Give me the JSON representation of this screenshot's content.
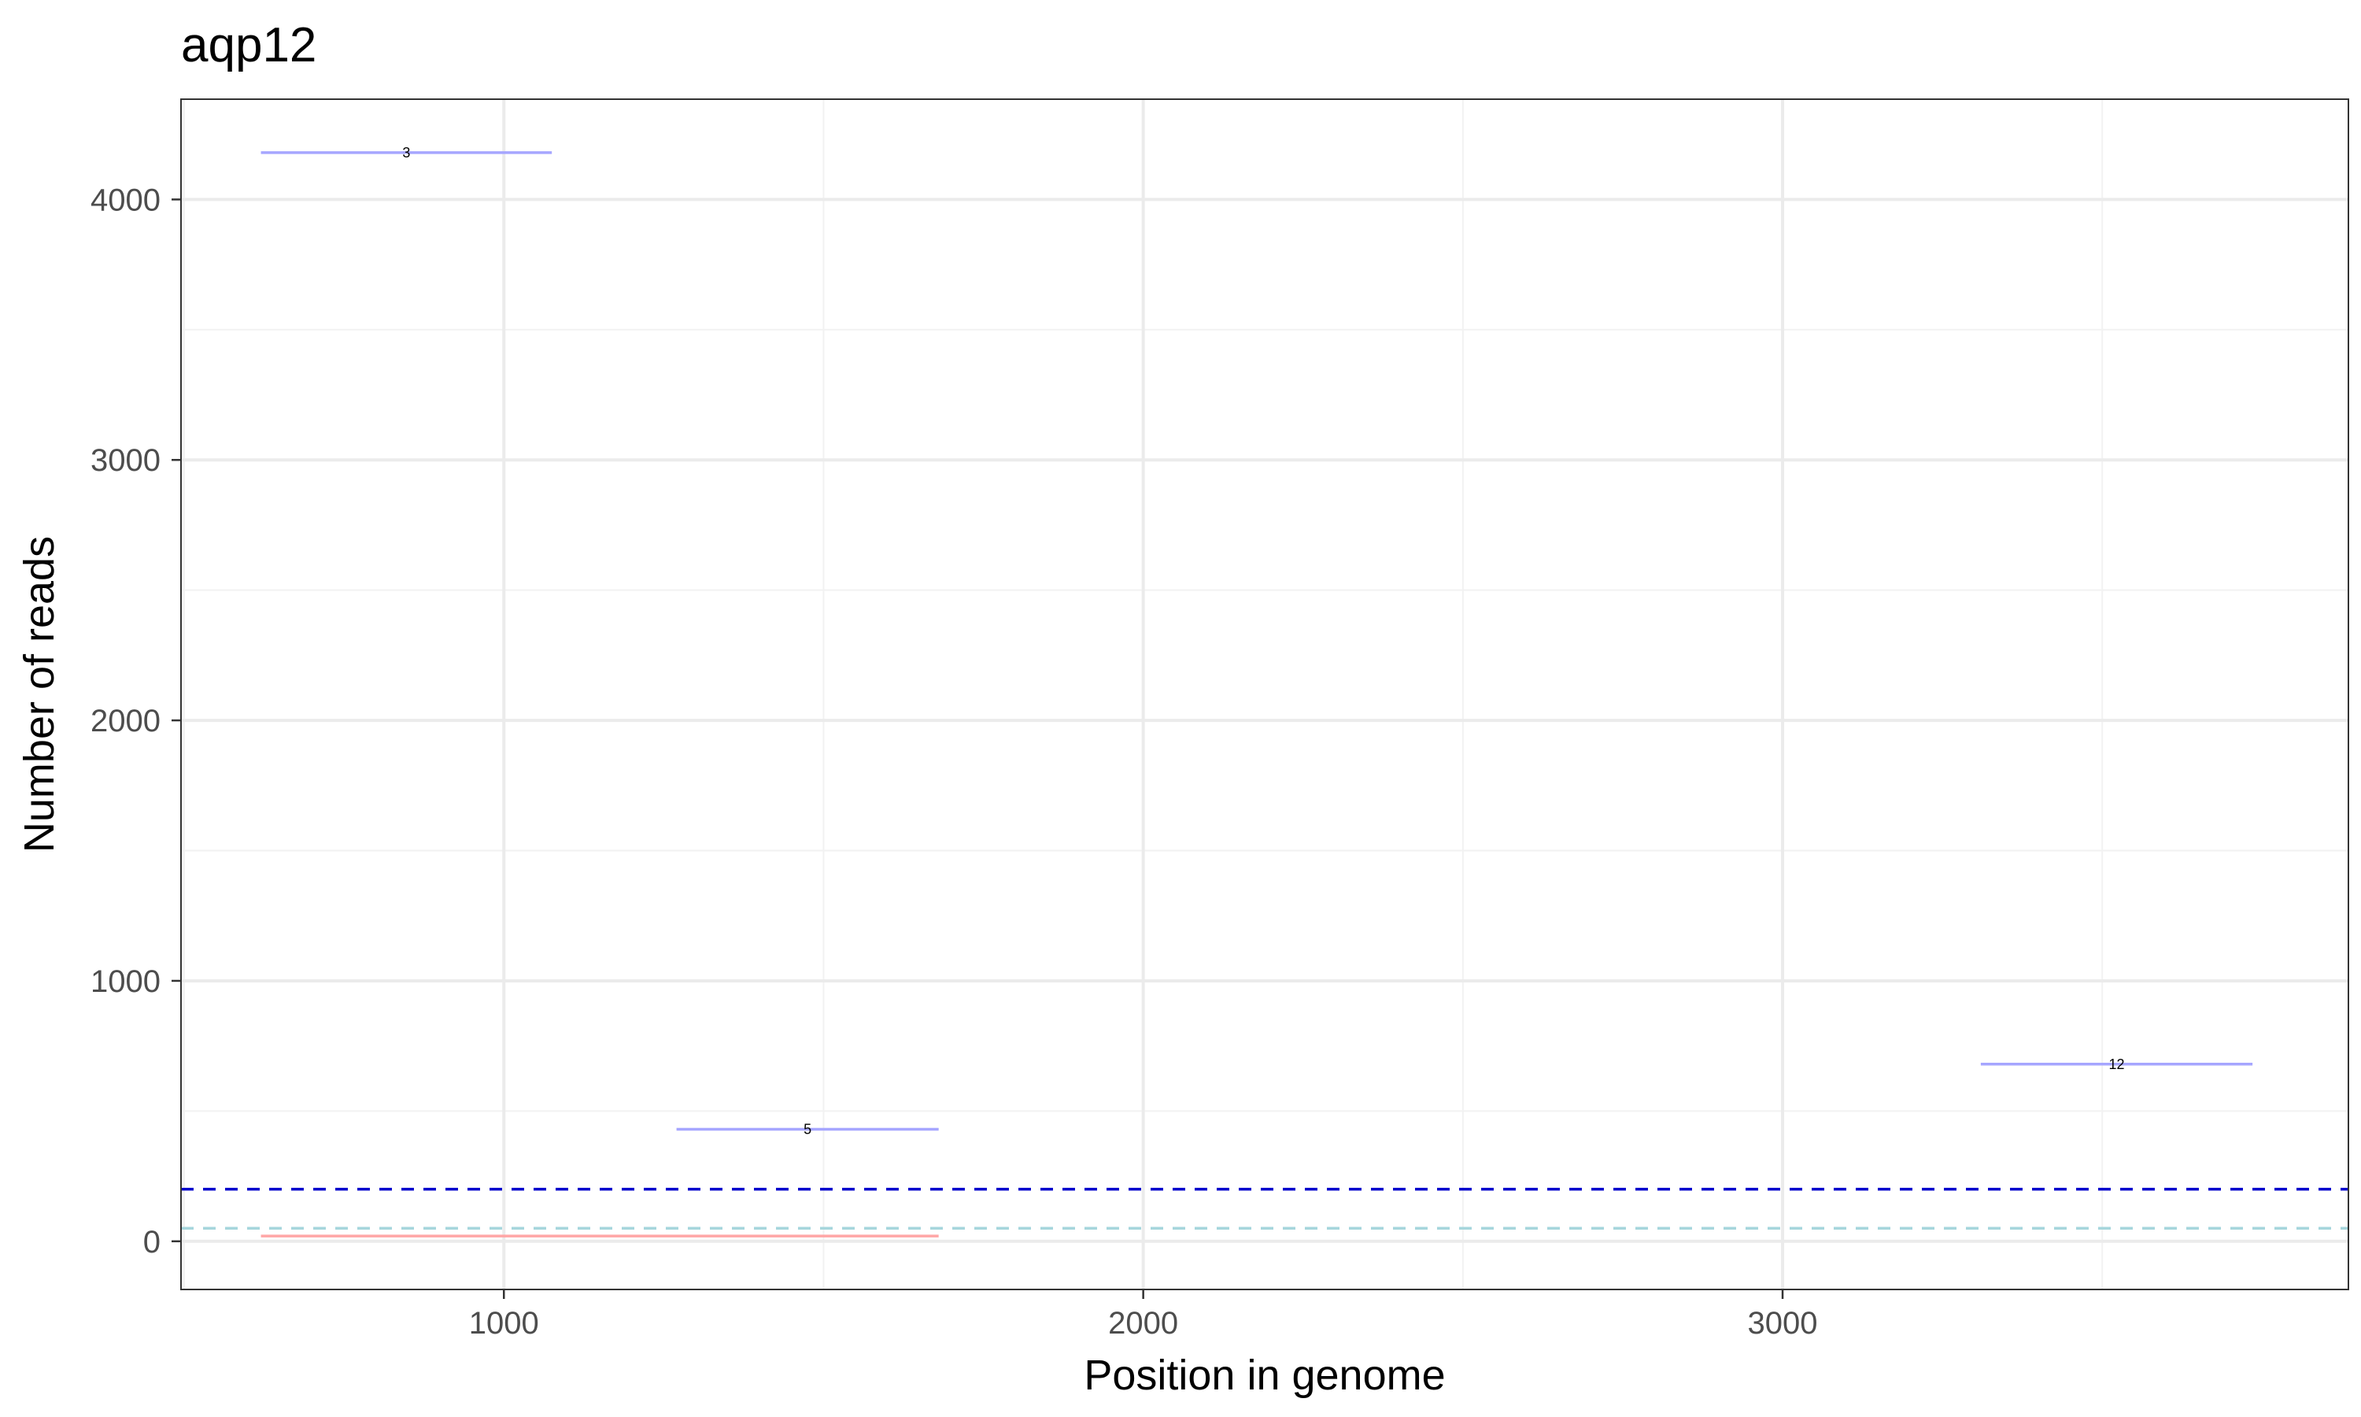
{
  "chart_data": {
    "type": "line",
    "title": "aqp12",
    "xlabel": "Position in genome",
    "ylabel": "Number of reads",
    "xlim": [
      495,
      3885
    ],
    "ylim": [
      -185,
      4385
    ],
    "x_ticks": [
      1000,
      2000,
      3000
    ],
    "y_ticks": [
      0,
      1000,
      2000,
      3000,
      4000
    ],
    "x_tick_labels": [
      "1000",
      "2000",
      "3000"
    ],
    "y_tick_labels": [
      "0",
      "1000",
      "2000",
      "3000",
      "4000"
    ],
    "grid": true,
    "segments": [
      {
        "label": "3",
        "x_start": 620,
        "x_end": 1075,
        "y": 4180,
        "color": "#a6a6ff"
      },
      {
        "label": "5",
        "x_start": 1270,
        "x_end": 1680,
        "y": 430,
        "color": "#a6a6ff"
      },
      {
        "label": "12",
        "x_start": 3310,
        "x_end": 3735,
        "y": 680,
        "color": "#a6a6ff"
      },
      {
        "label": "",
        "x_start": 620,
        "x_end": 1680,
        "y": 20,
        "color": "#ffa6a6"
      }
    ],
    "reference_lines": [
      {
        "y": 200,
        "color": "#0000cc",
        "style": "dashed"
      },
      {
        "y": 50,
        "color": "#a6d6dc",
        "style": "dashed"
      }
    ]
  }
}
